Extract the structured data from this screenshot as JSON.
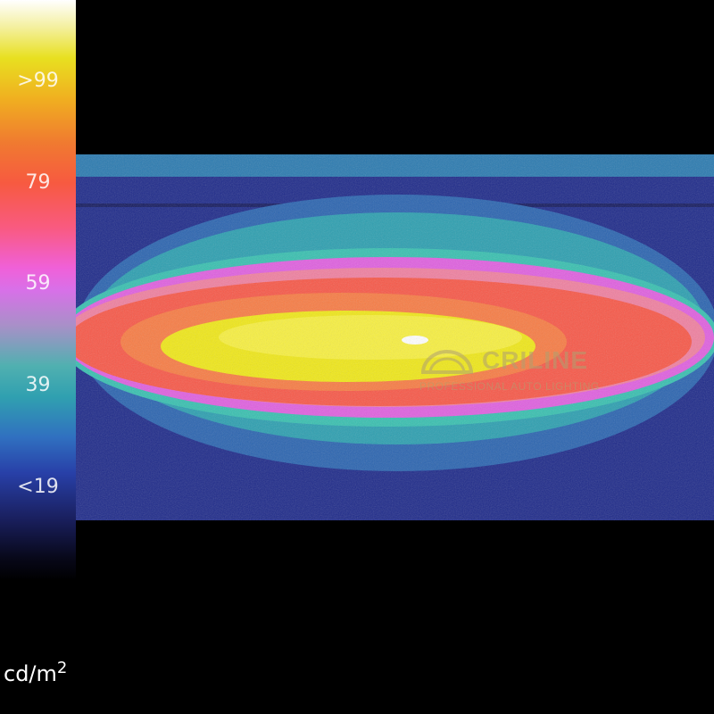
{
  "colorbar": {
    "ticks": [
      ">99",
      "79",
      "59",
      "39",
      "<19"
    ],
    "unit_base": "cd/m",
    "unit_exp": "2"
  },
  "watermark": {
    "name": "CRILINE",
    "tagline": "PROFESSIONAL AUTO LIGHTING"
  },
  "colors": {
    "background": "#1e2a8a",
    "low": "#2c9fb0",
    "mid": "#e060e0",
    "high": "#f85848",
    "peak": "#f0e818"
  }
}
